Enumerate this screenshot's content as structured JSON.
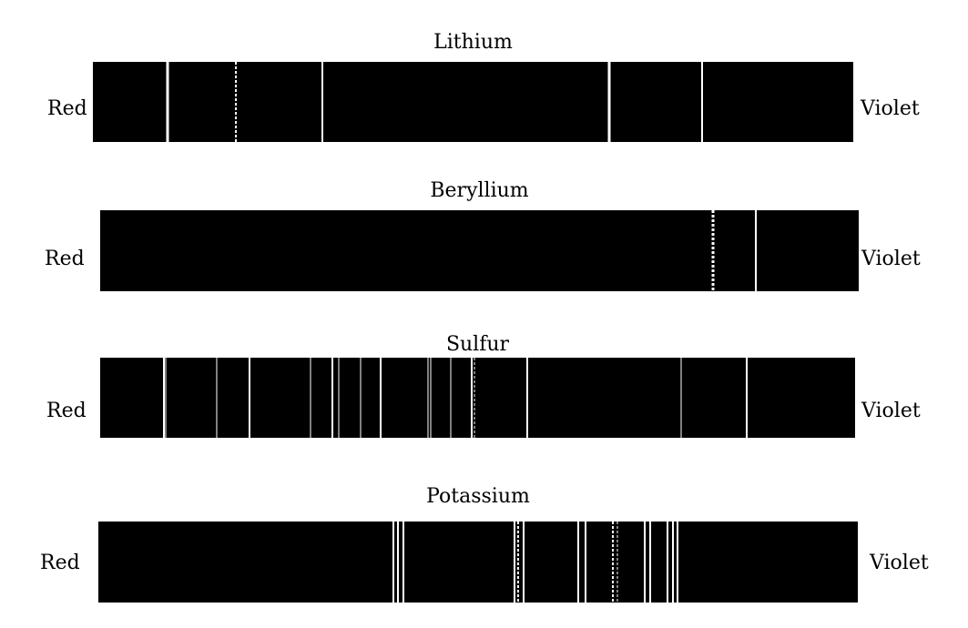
{
  "diagram": {
    "background_color": "#ffffff",
    "strip_color": "#000000",
    "line_color": "#ffffff",
    "spectra": [
      {
        "element": "Lithium",
        "left_label": "Red",
        "right_label": "Violet",
        "lines": [
          {
            "pos": 0.098,
            "w": 3
          },
          {
            "pos": 0.188,
            "w": 2,
            "dashed": true
          },
          {
            "pos": 0.302,
            "w": 2
          },
          {
            "pos": 0.679,
            "w": 3
          },
          {
            "pos": 0.801,
            "w": 2
          }
        ]
      },
      {
        "element": "Beryllium",
        "left_label": "Red",
        "right_label": "Violet",
        "lines": [
          {
            "pos": 0.808,
            "w": 3,
            "dashed": true
          },
          {
            "pos": 0.864,
            "w": 2
          }
        ]
      },
      {
        "element": "Sulfur",
        "left_label": "Red",
        "right_label": "Violet",
        "lines": [
          {
            "pos": 0.084,
            "w": 2
          },
          {
            "pos": 0.087,
            "w": 1
          },
          {
            "pos": 0.155,
            "w": 1
          },
          {
            "pos": 0.198,
            "w": 2
          },
          {
            "pos": 0.279,
            "w": 1
          },
          {
            "pos": 0.308,
            "w": 2
          },
          {
            "pos": 0.316,
            "w": 1
          },
          {
            "pos": 0.345,
            "w": 1
          },
          {
            "pos": 0.372,
            "w": 2
          },
          {
            "pos": 0.434,
            "w": 1
          },
          {
            "pos": 0.438,
            "w": 1
          },
          {
            "pos": 0.465,
            "w": 1
          },
          {
            "pos": 0.492,
            "w": 2
          },
          {
            "pos": 0.496,
            "w": 1,
            "dashed": true
          },
          {
            "pos": 0.566,
            "w": 2
          },
          {
            "pos": 0.77,
            "w": 1
          },
          {
            "pos": 0.857,
            "w": 2
          }
        ]
      },
      {
        "element": "Potassium",
        "left_label": "Red",
        "right_label": "Violet",
        "lines": [
          {
            "pos": 0.389,
            "w": 2
          },
          {
            "pos": 0.394,
            "w": 2
          },
          {
            "pos": 0.402,
            "w": 2
          },
          {
            "pos": 0.548,
            "w": 2
          },
          {
            "pos": 0.553,
            "w": 2,
            "dashed": true
          },
          {
            "pos": 0.56,
            "w": 2
          },
          {
            "pos": 0.632,
            "w": 2
          },
          {
            "pos": 0.641,
            "w": 2
          },
          {
            "pos": 0.678,
            "w": 2,
            "dashed": true
          },
          {
            "pos": 0.684,
            "w": 1,
            "dashed": true
          },
          {
            "pos": 0.719,
            "w": 2
          },
          {
            "pos": 0.727,
            "w": 2
          },
          {
            "pos": 0.749,
            "w": 2
          },
          {
            "pos": 0.756,
            "w": 2
          },
          {
            "pos": 0.763,
            "w": 2
          }
        ]
      }
    ]
  }
}
